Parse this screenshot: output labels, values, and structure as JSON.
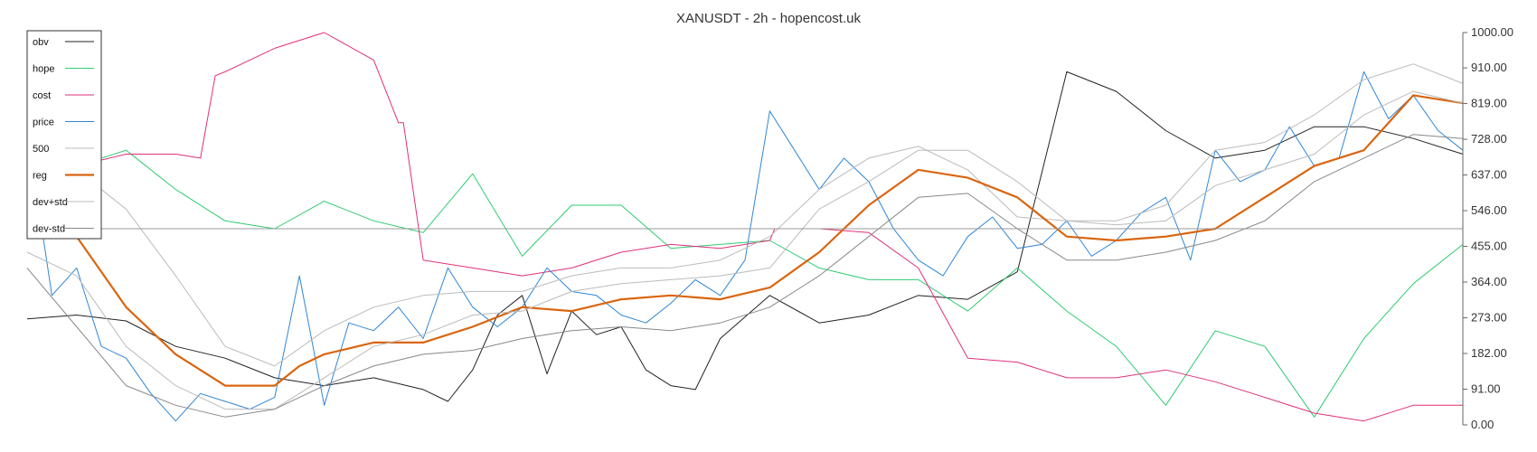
{
  "chart_data": {
    "type": "line",
    "title": "XANUSDT - 2h - hopencost.uk",
    "ylim": [
      0,
      1000
    ],
    "y_ticks": [
      "1000.00",
      "910.00",
      "819.00",
      "728.00",
      "637.00",
      "546.00",
      "455.00",
      "364.00",
      "273.00",
      "182.00",
      "91.00",
      "0.00"
    ],
    "y_tick_values": [
      1000,
      910,
      819,
      728,
      637,
      546,
      455,
      364,
      273,
      182,
      91,
      0
    ],
    "x_range": [
      0,
      290
    ],
    "reference_line": 500,
    "legend_position": "top-left",
    "series": [
      {
        "name": "obv",
        "color": "#222222",
        "width": 1,
        "x": [
          0,
          10,
          20,
          30,
          40,
          50,
          60,
          70,
          80,
          85,
          90,
          95,
          100,
          105,
          110,
          115,
          120,
          125,
          130,
          135,
          140,
          150,
          160,
          170,
          180,
          190,
          200,
          210,
          220,
          230,
          240,
          250,
          260,
          270,
          280,
          290
        ],
        "y": [
          270,
          280,
          265,
          200,
          170,
          120,
          100,
          120,
          90,
          60,
          140,
          280,
          330,
          130,
          290,
          230,
          250,
          140,
          100,
          90,
          220,
          330,
          260,
          280,
          330,
          320,
          390,
          900,
          850,
          750,
          680,
          700,
          760,
          760,
          730,
          690
        ]
      },
      {
        "name": "hope",
        "color": "#2ecc71",
        "width": 1,
        "x": [
          0,
          10,
          20,
          30,
          40,
          50,
          60,
          70,
          80,
          90,
          100,
          110,
          120,
          130,
          140,
          150,
          160,
          170,
          180,
          190,
          200,
          210,
          220,
          230,
          240,
          250,
          260,
          270,
          280,
          290
        ],
        "y": [
          750,
          660,
          700,
          600,
          520,
          500,
          570,
          520,
          490,
          640,
          430,
          560,
          560,
          450,
          460,
          470,
          400,
          370,
          370,
          290,
          400,
          290,
          200,
          50,
          240,
          200,
          20,
          220,
          360,
          460
        ]
      },
      {
        "name": "cost",
        "color": "#e0307a",
        "width": 1,
        "x": [
          0,
          10,
          20,
          30,
          35,
          38,
          40,
          50,
          60,
          70,
          75,
          76,
          80,
          90,
          100,
          110,
          120,
          130,
          140,
          150,
          151,
          160,
          170,
          180,
          190,
          200,
          210,
          220,
          230,
          240,
          250,
          260,
          270,
          280,
          290
        ],
        "y": [
          670,
          660,
          690,
          690,
          680,
          890,
          900,
          960,
          1000,
          930,
          770,
          770,
          420,
          400,
          380,
          400,
          440,
          460,
          450,
          470,
          500,
          500,
          490,
          400,
          170,
          160,
          120,
          120,
          140,
          110,
          70,
          30,
          10,
          50,
          50
        ]
      },
      {
        "name": "price",
        "color": "#2f86d6",
        "width": 1,
        "x": [
          0,
          5,
          10,
          15,
          20,
          25,
          30,
          35,
          40,
          45,
          50,
          55,
          60,
          65,
          70,
          75,
          80,
          85,
          90,
          95,
          100,
          105,
          110,
          115,
          120,
          125,
          130,
          135,
          140,
          145,
          150,
          155,
          160,
          165,
          170,
          175,
          180,
          185,
          190,
          195,
          200,
          205,
          210,
          215,
          220,
          225,
          230,
          235,
          240,
          245,
          250,
          255,
          260,
          265,
          270,
          275,
          280,
          285,
          290
        ],
        "y": [
          750,
          330,
          400,
          200,
          170,
          80,
          10,
          80,
          60,
          40,
          70,
          380,
          50,
          260,
          240,
          300,
          220,
          400,
          300,
          250,
          300,
          400,
          340,
          330,
          280,
          260,
          310,
          370,
          330,
          420,
          800,
          700,
          600,
          680,
          620,
          500,
          420,
          380,
          480,
          530,
          450,
          460,
          520,
          430,
          470,
          540,
          580,
          420,
          700,
          620,
          650,
          760,
          660,
          680,
          900,
          780,
          840,
          750,
          700
        ]
      },
      {
        "name": "500",
        "color": "#bbbbbb",
        "width": 1,
        "x": [
          0,
          10,
          20,
          30,
          40,
          50,
          60,
          70,
          80,
          90,
          100,
          110,
          120,
          130,
          140,
          150,
          160,
          170,
          180,
          190,
          200,
          210,
          220,
          230,
          240,
          250,
          260,
          270,
          280,
          290
        ],
        "y": [
          700,
          650,
          550,
          380,
          200,
          150,
          240,
          300,
          330,
          340,
          340,
          380,
          400,
          400,
          420,
          480,
          600,
          680,
          710,
          650,
          530,
          520,
          520,
          560,
          700,
          720,
          790,
          880,
          920,
          870
        ]
      },
      {
        "name": "reg",
        "color": "#d9650f",
        "width": 2.2,
        "x": [
          0,
          10,
          20,
          30,
          40,
          50,
          55,
          60,
          70,
          80,
          90,
          100,
          110,
          120,
          130,
          140,
          150,
          160,
          170,
          180,
          190,
          200,
          210,
          220,
          230,
          240,
          250,
          260,
          270,
          280,
          290
        ],
        "y": [
          570,
          480,
          300,
          180,
          100,
          100,
          150,
          180,
          210,
          210,
          250,
          300,
          290,
          320,
          330,
          320,
          350,
          440,
          560,
          650,
          630,
          580,
          480,
          470,
          480,
          500,
          580,
          660,
          700,
          840,
          820
        ]
      },
      {
        "name": "dev+std",
        "color": "#bbbbbb",
        "width": 1,
        "x": [
          0,
          10,
          20,
          30,
          40,
          50,
          60,
          70,
          80,
          90,
          100,
          110,
          120,
          130,
          140,
          150,
          160,
          170,
          180,
          190,
          200,
          210,
          220,
          230,
          240,
          250,
          260,
          270,
          280,
          290
        ],
        "y": [
          440,
          380,
          200,
          100,
          40,
          40,
          120,
          200,
          230,
          280,
          290,
          340,
          360,
          370,
          380,
          400,
          550,
          620,
          700,
          700,
          620,
          520,
          510,
          520,
          610,
          650,
          690,
          790,
          850,
          820
        ]
      },
      {
        "name": "dev-std",
        "color": "#888888",
        "width": 1,
        "x": [
          0,
          10,
          20,
          30,
          40,
          50,
          60,
          70,
          80,
          90,
          100,
          110,
          120,
          130,
          140,
          150,
          160,
          170,
          180,
          190,
          200,
          210,
          220,
          230,
          240,
          250,
          260,
          270,
          280,
          290
        ],
        "y": [
          400,
          250,
          100,
          50,
          20,
          40,
          100,
          150,
          180,
          190,
          220,
          240,
          250,
          240,
          260,
          300,
          380,
          480,
          580,
          590,
          500,
          420,
          420,
          440,
          470,
          520,
          620,
          680,
          740,
          730
        ]
      }
    ]
  }
}
